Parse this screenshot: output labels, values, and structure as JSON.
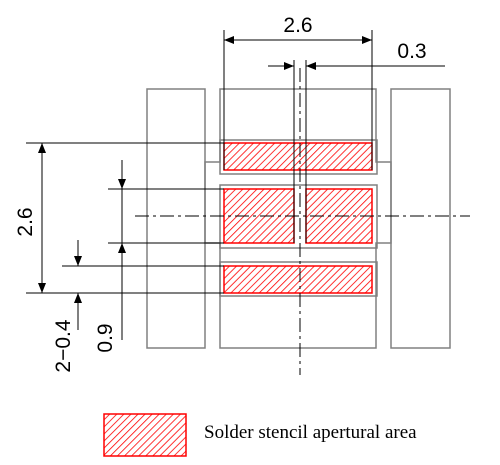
{
  "dimensions": {
    "top_width": "2.6",
    "gap": "0.3",
    "left_height": "2.6",
    "middle_height": "0.9",
    "pad_height": "2−0.4"
  },
  "legend": {
    "label": "Solder stencil apertural area"
  },
  "colors": {
    "aperture_stroke": "#ff0000",
    "aperture_hatch": "#ff0000",
    "outline": "#808080",
    "line": "#000000"
  }
}
